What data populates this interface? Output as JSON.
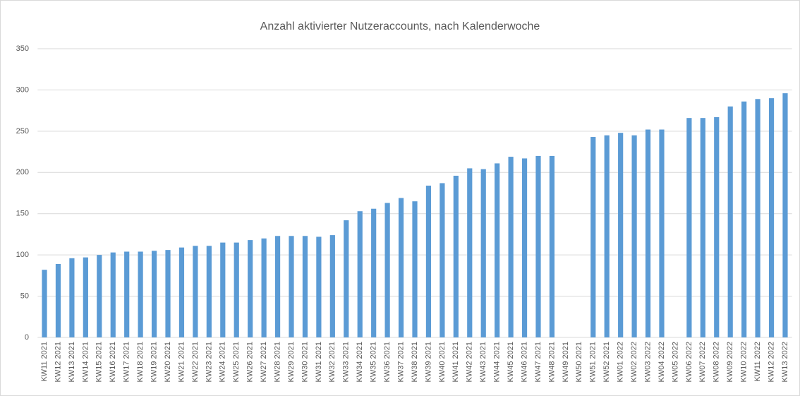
{
  "chart_data": {
    "type": "bar",
    "title": "Anzahl aktivierter Nutzeraccounts, nach Kalenderwoche",
    "categories": [
      "KW11 2021",
      "KW12 2021",
      "KW13 2021",
      "KW14 2021",
      "KW15 2021",
      "KW16 2021",
      "KW17 2021",
      "KW18 2021",
      "KW19 2021",
      "KW20 2021",
      "KW21 2021",
      "KW22 2021",
      "KW23 2021",
      "KW24 2021",
      "KW25 2021",
      "KW26 2021",
      "KW27 2021",
      "KW28 2021",
      "KW29 2021",
      "KW30 2021",
      "KW31 2021",
      "KW32 2021",
      "KW33 2021",
      "KW34 2021",
      "KW35 2021",
      "KW36 2021",
      "KW37 2021",
      "KW38 2021",
      "KW39 2021",
      "KW40 2021",
      "KW41 2021",
      "KW42 2021",
      "KW43 2021",
      "KW44 2021",
      "KW45 2021",
      "KW46 2021",
      "KW47 2021",
      "KW48 2021",
      "KW49 2021",
      "KW50 2021",
      "KW51 2021",
      "KW52 2021",
      "KW01 2022",
      "KW02 2022",
      "KW03 2022",
      "KW04 2022",
      "KW05 2022",
      "KW06 2022",
      "KW07 2022",
      "KW08 2022",
      "KW09 2022",
      "KW10 2022",
      "KW11 2022",
      "KW12 2022",
      "KW13 2022"
    ],
    "values": [
      82,
      89,
      96,
      97,
      100,
      103,
      104,
      104,
      105,
      106,
      109,
      111,
      111,
      115,
      115,
      118,
      120,
      123,
      123,
      123,
      122,
      124,
      142,
      153,
      156,
      163,
      169,
      165,
      184,
      187,
      196,
      205,
      204,
      211,
      219,
      217,
      220,
      220,
      null,
      null,
      243,
      245,
      248,
      245,
      252,
      252,
      null,
      266,
      266,
      267,
      280,
      286,
      289,
      290,
      296
    ],
    "color": "#5b9bd5",
    "ylim": [
      0,
      350
    ],
    "yticks": [
      0,
      50,
      100,
      150,
      200,
      250,
      300,
      350
    ],
    "grid": true
  }
}
